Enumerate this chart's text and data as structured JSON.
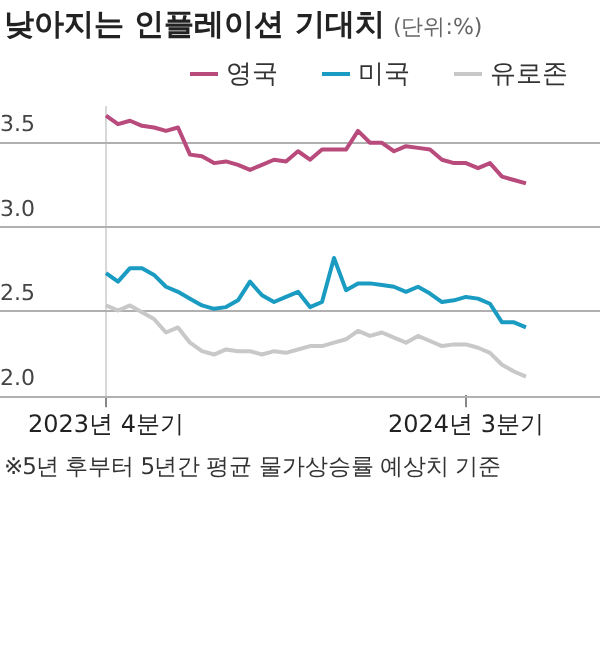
{
  "chart_data": {
    "type": "line",
    "title": "낮아지는 인플레이션 기대치",
    "subtitle": "(단위:%)",
    "categories": [
      "2023년 4분기",
      null,
      null,
      null,
      null,
      null,
      null,
      null,
      null,
      null,
      null,
      null,
      null,
      null,
      null,
      null,
      null,
      null,
      null,
      null,
      null,
      null,
      null,
      null,
      null,
      null,
      null,
      null,
      null,
      null,
      "2024년 3분기",
      null,
      null,
      null,
      null,
      null
    ],
    "series": [
      {
        "name": "영국",
        "color": "#b94a7c",
        "values": [
          3.65,
          3.6,
          3.62,
          3.59,
          3.58,
          3.56,
          3.58,
          3.42,
          3.41,
          3.37,
          3.38,
          3.36,
          3.33,
          3.36,
          3.39,
          3.38,
          3.44,
          3.39,
          3.45,
          3.45,
          3.45,
          3.56,
          3.49,
          3.49,
          3.44,
          3.47,
          3.46,
          3.45,
          3.39,
          3.37,
          3.37,
          3.34,
          3.37,
          3.29,
          3.27,
          3.25
        ]
      },
      {
        "name": "미국",
        "color": "#1a9bc2",
        "values": [
          2.72,
          2.67,
          2.75,
          2.75,
          2.71,
          2.64,
          2.61,
          2.57,
          2.53,
          2.51,
          2.52,
          2.56,
          2.67,
          2.59,
          2.55,
          2.58,
          2.61,
          2.52,
          2.55,
          2.81,
          2.62,
          2.66,
          2.66,
          2.65,
          2.64,
          2.61,
          2.64,
          2.6,
          2.55,
          2.56,
          2.58,
          2.57,
          2.54,
          2.43,
          2.43,
          2.4
        ]
      },
      {
        "name": "유로존",
        "color": "#c8c8c8",
        "values": [
          2.53,
          2.5,
          2.53,
          2.49,
          2.45,
          2.37,
          2.4,
          2.31,
          2.26,
          2.24,
          2.27,
          2.26,
          2.26,
          2.24,
          2.26,
          2.25,
          2.27,
          2.29,
          2.29,
          2.31,
          2.33,
          2.38,
          2.35,
          2.37,
          2.34,
          2.31,
          2.35,
          2.32,
          2.29,
          2.3,
          2.3,
          2.28,
          2.25,
          2.18,
          2.14,
          2.11
        ]
      }
    ],
    "ylim": [
      2.0,
      3.7
    ],
    "yticks": [
      {
        "value": 2.0,
        "label": "2.0"
      },
      {
        "value": 2.5,
        "label": "2.5"
      },
      {
        "value": 3.0,
        "label": "3.0"
      },
      {
        "value": 3.5,
        "label": "3.5"
      }
    ],
    "grid": "y",
    "legend": "top right",
    "marker": "none",
    "line_style": "solid",
    "annotations": [
      "※5년 후부터 5년간 평균 물가상승률 예상치 기준"
    ]
  }
}
